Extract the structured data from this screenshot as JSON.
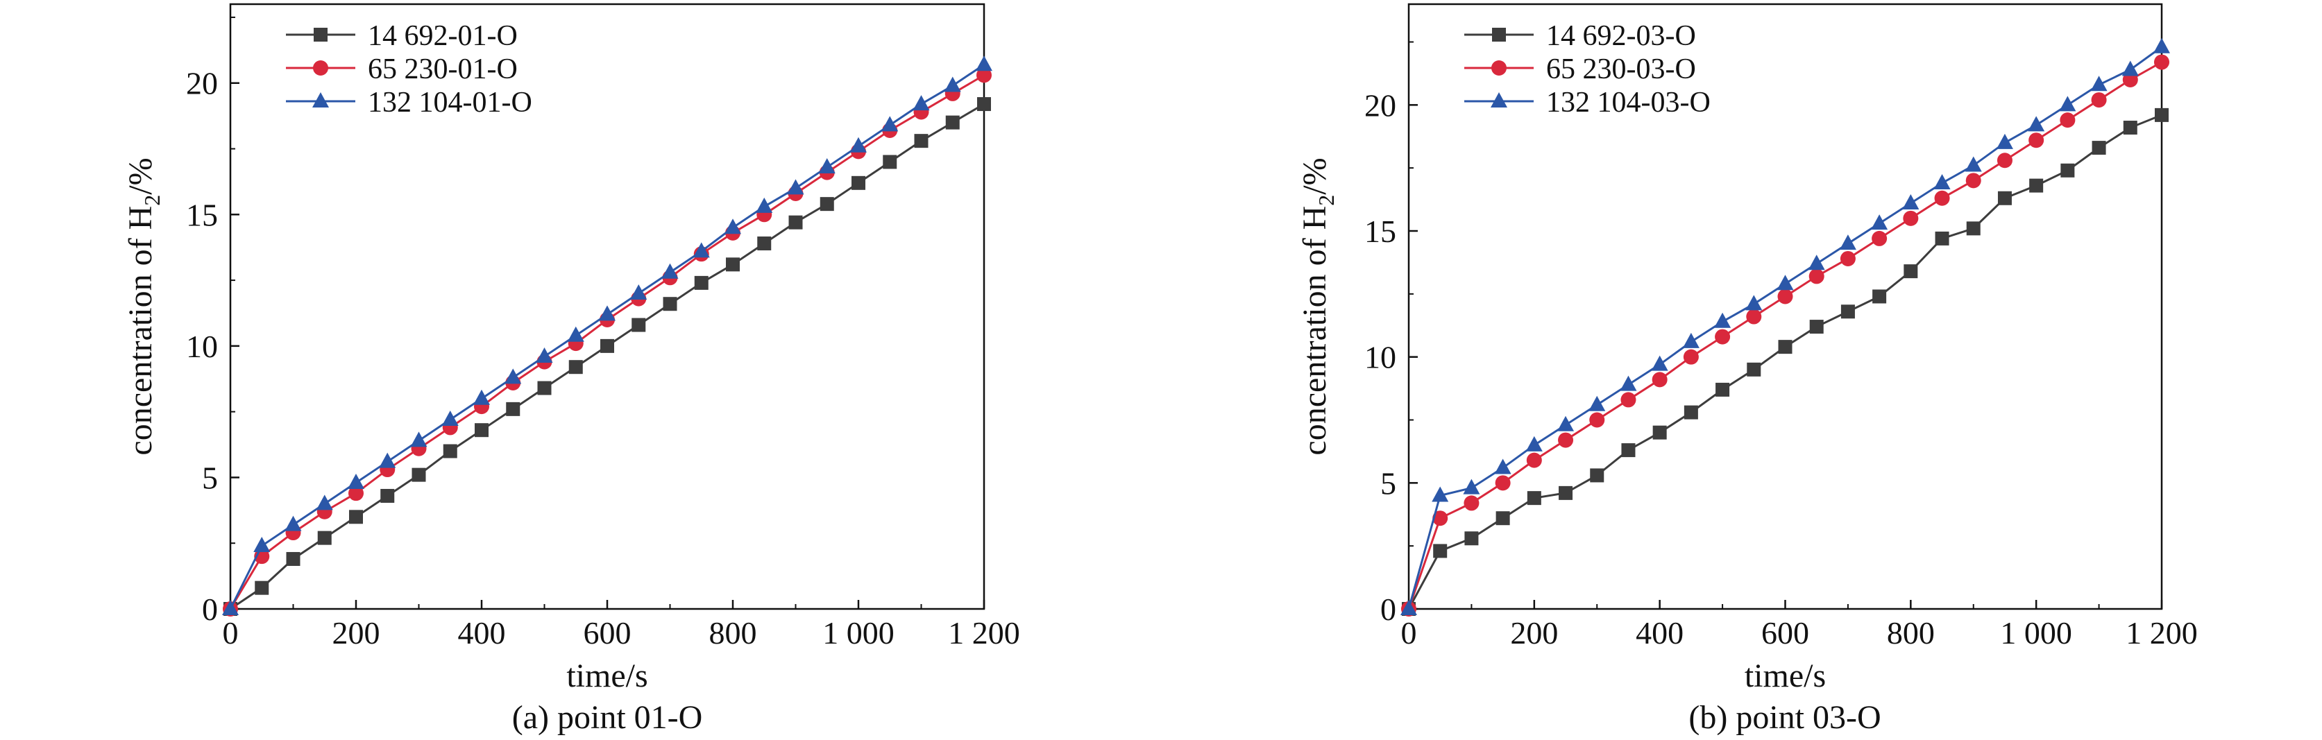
{
  "figure": {
    "panels": [
      {
        "id": "a",
        "caption": "(a) point 01-O"
      },
      {
        "id": "b",
        "caption": "(b) point 03-O"
      }
    ]
  },
  "chart_data": [
    {
      "type": "line",
      "caption": "(a) point 01-O",
      "xlabel": "time/s",
      "ylabel_parts": [
        "concentration of H",
        "2",
        "/%"
      ],
      "xlim": [
        0,
        1200
      ],
      "ylim": [
        0,
        23
      ],
      "xticks": [
        0,
        200,
        400,
        600,
        800,
        1000,
        1200
      ],
      "xtick_labels": [
        "0",
        "200",
        "400",
        "600",
        "800",
        "1 000",
        "1 200"
      ],
      "yticks": [
        0,
        5,
        10,
        15,
        20
      ],
      "ytick_labels": [
        "0",
        "5",
        "10",
        "15",
        "20"
      ],
      "grid": false,
      "legend_position": "top-left",
      "x": [
        0,
        50,
        100,
        150,
        200,
        250,
        300,
        350,
        400,
        450,
        500,
        550,
        600,
        650,
        700,
        750,
        800,
        850,
        900,
        950,
        1000,
        1050,
        1100,
        1150,
        1200
      ],
      "series": [
        {
          "name": "14 692-01-O",
          "color": "#3d3d3d",
          "marker": "square",
          "values": [
            0,
            0.8,
            1.9,
            2.7,
            3.5,
            4.3,
            5.1,
            6.0,
            6.8,
            7.6,
            8.4,
            9.2,
            10.0,
            10.8,
            11.6,
            12.4,
            13.1,
            13.9,
            14.7,
            15.4,
            16.2,
            17.0,
            17.8,
            18.5,
            19.2
          ]
        },
        {
          "name": "65 230-01-O",
          "color": "#d9283c",
          "marker": "circle",
          "values": [
            0,
            2.0,
            2.9,
            3.7,
            4.4,
            5.3,
            6.1,
            6.9,
            7.7,
            8.6,
            9.4,
            10.1,
            11.0,
            11.8,
            12.6,
            13.5,
            14.3,
            15.0,
            15.8,
            16.6,
            17.4,
            18.2,
            18.9,
            19.6,
            20.3
          ]
        },
        {
          "name": "132 104-01-O",
          "color": "#2b57a8",
          "marker": "triangle",
          "values": [
            0,
            2.4,
            3.2,
            4.0,
            4.8,
            5.6,
            6.4,
            7.2,
            8.0,
            8.8,
            9.6,
            10.4,
            11.2,
            12.0,
            12.8,
            13.6,
            14.5,
            15.3,
            16.0,
            16.8,
            17.6,
            18.4,
            19.2,
            19.9,
            20.7
          ]
        }
      ]
    },
    {
      "type": "line",
      "caption": "(b) point 03-O",
      "xlabel": "time/s",
      "ylabel_parts": [
        "concentration of H",
        "2",
        "/%"
      ],
      "xlim": [
        0,
        1200
      ],
      "ylim": [
        0,
        24
      ],
      "xticks": [
        0,
        200,
        400,
        600,
        800,
        1000,
        1200
      ],
      "xtick_labels": [
        "0",
        "200",
        "400",
        "600",
        "800",
        "1 000",
        "1 200"
      ],
      "yticks": [
        0,
        5,
        10,
        15,
        20
      ],
      "ytick_labels": [
        "0",
        "5",
        "10",
        "15",
        "20"
      ],
      "grid": false,
      "legend_position": "top-left",
      "x": [
        0,
        50,
        100,
        150,
        200,
        250,
        300,
        350,
        400,
        450,
        500,
        550,
        600,
        650,
        700,
        750,
        800,
        850,
        900,
        950,
        1000,
        1050,
        1100,
        1150,
        1200
      ],
      "series": [
        {
          "name": "14 692-03-O",
          "color": "#3d3d3d",
          "marker": "square",
          "values": [
            0,
            2.3,
            2.8,
            3.6,
            4.4,
            4.6,
            5.3,
            6.3,
            7.0,
            7.8,
            8.7,
            9.5,
            10.4,
            11.2,
            11.8,
            12.4,
            13.4,
            14.7,
            15.1,
            16.3,
            16.8,
            17.4,
            18.3,
            19.1,
            19.6
          ]
        },
        {
          "name": "65 230-03-O",
          "color": "#d9283c",
          "marker": "circle",
          "values": [
            0,
            3.6,
            4.2,
            5.0,
            5.9,
            6.7,
            7.5,
            8.3,
            9.1,
            10.0,
            10.8,
            11.6,
            12.4,
            13.2,
            13.9,
            14.7,
            15.5,
            16.3,
            17.0,
            17.8,
            18.6,
            19.4,
            20.2,
            21.0,
            21.7
          ]
        },
        {
          "name": "132 104-03-O",
          "color": "#2b57a8",
          "marker": "triangle",
          "values": [
            0,
            4.5,
            4.8,
            5.6,
            6.5,
            7.3,
            8.1,
            8.9,
            9.7,
            10.6,
            11.4,
            12.1,
            12.9,
            13.7,
            14.5,
            15.3,
            16.1,
            16.9,
            17.6,
            18.5,
            19.2,
            20.0,
            20.8,
            21.4,
            22.3
          ]
        }
      ]
    }
  ]
}
